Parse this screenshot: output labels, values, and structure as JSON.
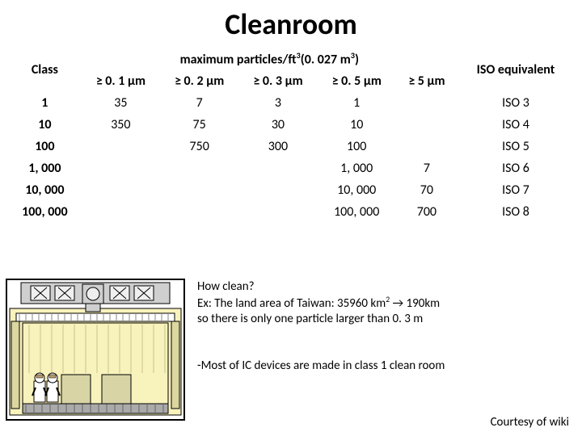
{
  "title": "Cleanroom",
  "headers": {
    "class": "Class",
    "particles_group": "maximum particles/ft",
    "particles_group_sup": "3",
    "particles_group_tail": "(0. 027 m",
    "particles_group_tail_sup": "3",
    "particles_group_tail_close": ")",
    "iso": "ISO equivalent",
    "sub": [
      "≥ 0. 1 µm",
      "≥ 0. 2 µm",
      "≥ 0. 3 µm",
      "≥ 0. 5 µm",
      "≥ 5 µm"
    ]
  },
  "rows": [
    {
      "class": "1",
      "c": [
        "35",
        "7",
        "3",
        "1",
        ""
      ],
      "iso": "ISO 3"
    },
    {
      "class": "10",
      "c": [
        "350",
        "75",
        "30",
        "10",
        ""
      ],
      "iso": "ISO 4"
    },
    {
      "class": "100",
      "c": [
        "",
        "750",
        "300",
        "100",
        ""
      ],
      "iso": "ISO 5"
    },
    {
      "class": "1, 000",
      "c": [
        "",
        "",
        "",
        "1, 000",
        "7"
      ],
      "iso": "ISO 6"
    },
    {
      "class": "10, 000",
      "c": [
        "",
        "",
        "",
        "10, 000",
        "70"
      ],
      "iso": "ISO 7"
    },
    {
      "class": "100, 000",
      "c": [
        "",
        "",
        "",
        "100, 000",
        "700"
      ],
      "iso": "ISO 8"
    }
  ],
  "notes": {
    "line1": "How clean?",
    "line2_a": "Ex: The land area of Taiwan: 35960 km",
    "line2_sup": "2",
    "line2_arrow": " → ",
    "line2_b": "190km",
    "line3": "so there is only one particle larger than 0. 3 m",
    "line4": "-Most of IC devices are made in class 1 clean room"
  },
  "credit": "Courtesy of wiki",
  "diagram": {
    "background": "#f8f2bc",
    "frame_fill": "#dcd6a0",
    "duct_fill": "#cfcfcf",
    "duct_stroke": "#000000",
    "worker_body": "#ffffff",
    "worker_outline": "#000000",
    "worker_detail": "#b89a6a",
    "floor_fill": "#aaaaaa",
    "panel_fill": "#f0f0f0"
  }
}
